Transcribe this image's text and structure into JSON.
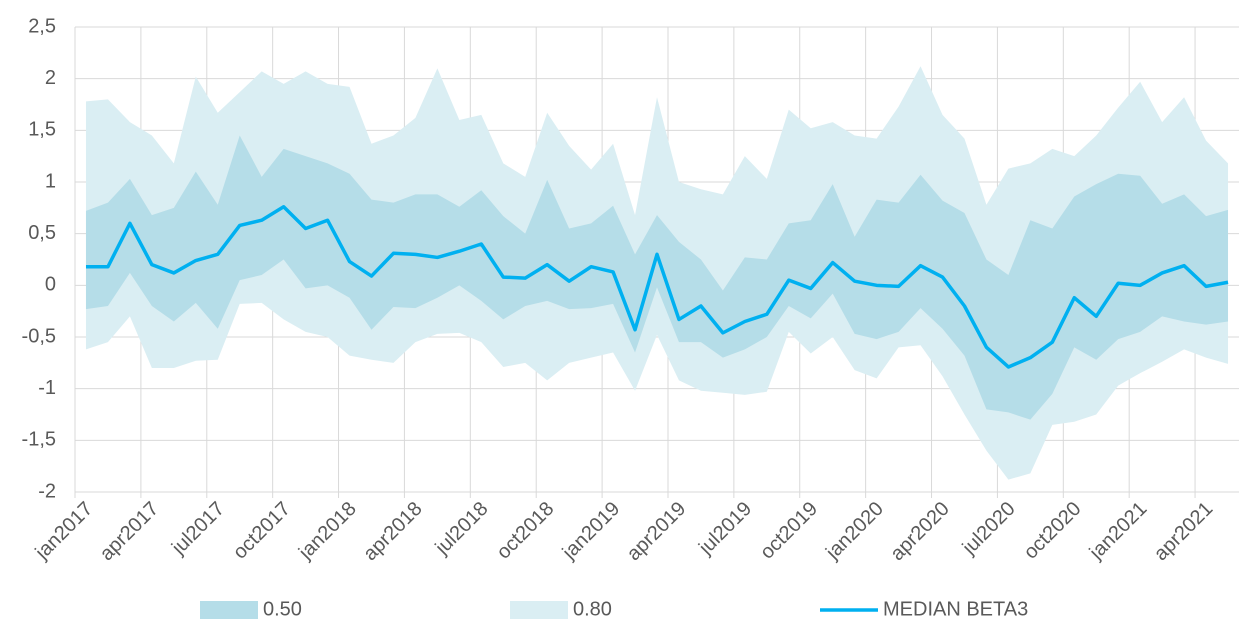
{
  "chart_data": {
    "type": "band-line",
    "categories": [
      "jan2017",
      null,
      null,
      "apr2017",
      null,
      null,
      "jul2017",
      null,
      null,
      "oct2017",
      null,
      null,
      "jan2018",
      null,
      null,
      "apr2018",
      null,
      null,
      "jul2018",
      null,
      null,
      "oct2018",
      null,
      null,
      "jan2019",
      null,
      null,
      "apr2019",
      null,
      null,
      "jul2019",
      null,
      null,
      "oct2019",
      null,
      null,
      "jan2020",
      null,
      null,
      "apr2020",
      null,
      null,
      "jul2020",
      null,
      null,
      "oct2020",
      null,
      null,
      "jan2021",
      null,
      null,
      "apr2021",
      null
    ],
    "ylim": [
      -2,
      2.5
    ],
    "yticks": [
      -2,
      {
        "value": -1.5,
        "label": "-1,5"
      },
      -1,
      {
        "value": -0.5,
        "label": "-0,5"
      },
      0,
      {
        "value": 0.5,
        "label": "0,5"
      },
      1,
      {
        "value": 1.5,
        "label": "1,5"
      },
      2,
      {
        "value": 2.5,
        "label": "2,5"
      }
    ],
    "grid": true,
    "series": [
      {
        "name": "0.50",
        "kind": "band",
        "color": "#b5dde8",
        "high": [
          0.72,
          0.8,
          1.03,
          0.68,
          0.75,
          1.1,
          0.78,
          1.45,
          1.05,
          1.32,
          1.25,
          1.18,
          1.08,
          0.83,
          0.8,
          0.88,
          0.88,
          0.76,
          0.92,
          0.67,
          0.5,
          1.02,
          0.55,
          0.6,
          0.77,
          0.3,
          0.68,
          0.42,
          0.25,
          -0.05,
          0.27,
          0.25,
          0.6,
          0.63,
          0.98,
          0.47,
          0.83,
          0.8,
          1.07,
          0.82,
          0.7,
          0.25,
          0.1,
          0.63,
          0.55,
          0.86,
          0.98,
          1.08,
          1.06,
          0.79,
          0.88,
          0.67,
          0.73
        ],
        "low": [
          -0.23,
          -0.2,
          0.12,
          -0.2,
          -0.35,
          -0.17,
          -0.42,
          0.05,
          0.1,
          0.25,
          -0.03,
          0.0,
          -0.12,
          -0.43,
          -0.21,
          -0.22,
          -0.12,
          0.0,
          -0.15,
          -0.33,
          -0.2,
          -0.15,
          -0.23,
          -0.22,
          -0.18,
          -0.65,
          -0.02,
          -0.55,
          -0.55,
          -0.7,
          -0.62,
          -0.5,
          -0.2,
          -0.32,
          -0.08,
          -0.47,
          -0.52,
          -0.45,
          -0.22,
          -0.42,
          -0.68,
          -1.2,
          -1.23,
          -1.3,
          -1.05,
          -0.6,
          -0.72,
          -0.52,
          -0.45,
          -0.3,
          -0.35,
          -0.38,
          -0.35
        ]
      },
      {
        "name": "0.80",
        "kind": "band",
        "color": "#daeef3",
        "high": [
          1.78,
          1.8,
          1.58,
          1.45,
          1.18,
          2.02,
          1.67,
          1.87,
          2.07,
          1.95,
          2.07,
          1.95,
          1.92,
          1.37,
          1.45,
          1.62,
          2.1,
          1.6,
          1.65,
          1.18,
          1.05,
          1.67,
          1.35,
          1.12,
          1.37,
          0.68,
          1.82,
          1.0,
          0.93,
          0.88,
          1.25,
          1.03,
          1.7,
          1.52,
          1.58,
          1.45,
          1.42,
          1.73,
          2.12,
          1.65,
          1.42,
          0.78,
          1.13,
          1.18,
          1.32,
          1.25,
          1.45,
          1.72,
          1.97,
          1.58,
          1.82,
          1.4,
          1.18
        ],
        "low": [
          -0.62,
          -0.55,
          -0.3,
          -0.8,
          -0.8,
          -0.73,
          -0.72,
          -0.18,
          -0.17,
          -0.33,
          -0.45,
          -0.5,
          -0.68,
          -0.72,
          -0.75,
          -0.55,
          -0.47,
          -0.46,
          -0.55,
          -0.79,
          -0.75,
          -0.92,
          -0.75,
          -0.7,
          -0.65,
          -1.02,
          -0.48,
          -0.92,
          -1.02,
          -1.04,
          -1.06,
          -1.03,
          -0.45,
          -0.66,
          -0.5,
          -0.82,
          -0.9,
          -0.6,
          -0.58,
          -0.88,
          -1.25,
          -1.6,
          -1.88,
          -1.82,
          -1.35,
          -1.32,
          -1.25,
          -0.97,
          -0.85,
          -0.74,
          -0.62,
          -0.7,
          -0.76
        ]
      },
      {
        "name": "MEDIAN BETA3",
        "kind": "line",
        "color": "#00b0f0",
        "values": [
          0.18,
          0.18,
          0.6,
          0.2,
          0.12,
          0.24,
          0.3,
          0.58,
          0.63,
          0.76,
          0.55,
          0.63,
          0.23,
          0.09,
          0.31,
          0.3,
          0.27,
          0.33,
          0.4,
          0.08,
          0.07,
          0.2,
          0.04,
          0.18,
          0.13,
          -0.43,
          0.3,
          -0.33,
          -0.2,
          -0.46,
          -0.35,
          -0.28,
          0.05,
          -0.03,
          0.22,
          0.04,
          0.0,
          -0.01,
          0.19,
          0.08,
          -0.2,
          -0.6,
          -0.79,
          -0.7,
          -0.55,
          -0.12,
          -0.3,
          0.02,
          0.0,
          0.12,
          0.19,
          -0.01,
          0.03
        ]
      }
    ]
  }
}
